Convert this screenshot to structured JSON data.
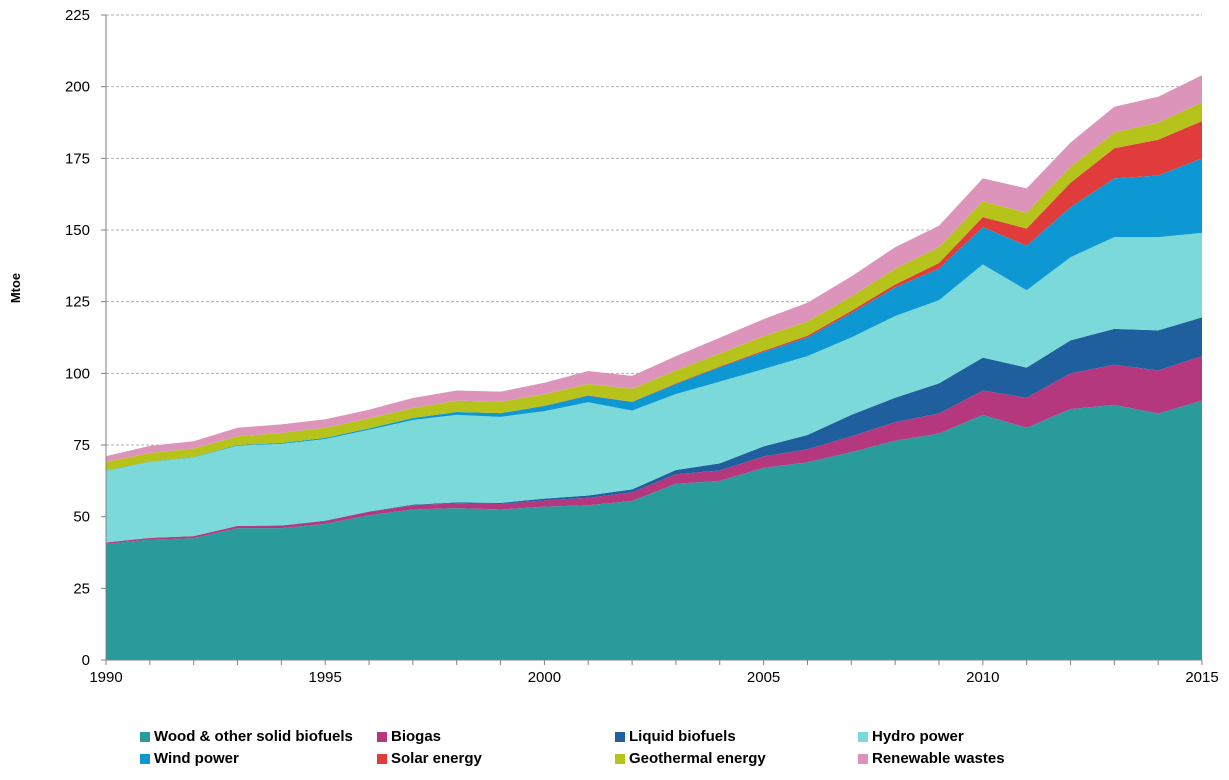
{
  "chart_data": {
    "type": "area",
    "stacked": true,
    "title": "",
    "xlabel": "",
    "ylabel": "Mtoe",
    "ylim": [
      0,
      225
    ],
    "yticks": [
      0,
      25,
      50,
      75,
      100,
      125,
      150,
      175,
      200,
      225
    ],
    "xlim": [
      1990,
      2015
    ],
    "xticks": [
      1990,
      1995,
      2000,
      2005,
      2010,
      2015
    ],
    "grid": "horizontal dashed",
    "legend_position": "bottom",
    "x": [
      1990,
      1991,
      1992,
      1993,
      1994,
      1995,
      1996,
      1997,
      1998,
      1999,
      2000,
      2001,
      2002,
      2003,
      2004,
      2005,
      2006,
      2007,
      2008,
      2009,
      2010,
      2011,
      2012,
      2013,
      2014,
      2015
    ],
    "series": [
      {
        "name": "Wood & other solid biofuels",
        "color": "#2a9b9b",
        "values": [
          40.5,
          42,
          42.5,
          46,
          46,
          47.5,
          50.5,
          52.5,
          53,
          52.5,
          53.5,
          54,
          55.5,
          61.5,
          62.5,
          67,
          69,
          72.5,
          76.5,
          79,
          85.5,
          81,
          87.5,
          89,
          86,
          90.5
        ]
      },
      {
        "name": "Biogas",
        "color": "#b5387f",
        "values": [
          0.5,
          0.6,
          0.7,
          0.8,
          0.9,
          1,
          1.2,
          1.5,
          1.7,
          1.9,
          2.2,
          2.6,
          3,
          3.3,
          3.6,
          4,
          4.5,
          5.5,
          6.5,
          7,
          8.5,
          10.5,
          12.5,
          14,
          15,
          15.5
        ]
      },
      {
        "name": "Liquid biofuels",
        "color": "#1f5f9e",
        "values": [
          0,
          0,
          0,
          0,
          0,
          0.1,
          0.1,
          0.2,
          0.3,
          0.4,
          0.6,
          0.8,
          1,
          1.5,
          2.5,
          3.5,
          5,
          7.5,
          8.5,
          10.5,
          11.5,
          10.5,
          11.5,
          12.5,
          14,
          13.5
        ]
      },
      {
        "name": "Hydro power",
        "color": "#7bdad9",
        "values": [
          25,
          26.5,
          27.5,
          28,
          28.5,
          28.5,
          28.5,
          29.5,
          30.5,
          30,
          30.5,
          32.5,
          27.5,
          26.5,
          28.5,
          27,
          27.5,
          27,
          28.5,
          29,
          32.5,
          27,
          29,
          32,
          32.5,
          29.5
        ]
      },
      {
        "name": "Wind power",
        "color": "#0d98d3",
        "values": [
          0.1,
          0.1,
          0.1,
          0.2,
          0.3,
          0.4,
          0.5,
          0.7,
          1,
          1.3,
          1.8,
          2.3,
          3,
          3.5,
          5,
          6,
          6.5,
          8.5,
          10,
          11,
          13,
          15.5,
          17.5,
          20.5,
          21.5,
          26
        ]
      },
      {
        "name": "Solar energy",
        "color": "#e03c3c",
        "values": [
          0,
          0,
          0,
          0,
          0,
          0,
          0,
          0,
          0,
          0,
          0.1,
          0.1,
          0.1,
          0.2,
          0.3,
          0.4,
          0.6,
          0.8,
          1,
          2,
          3.5,
          6,
          8.5,
          10.5,
          12.5,
          13
        ]
      },
      {
        "name": "Geothermal energy",
        "color": "#b6c31a",
        "values": [
          3,
          3,
          3,
          3,
          3.5,
          3.5,
          3.5,
          3.5,
          4,
          4,
          4,
          4,
          4.5,
          4.5,
          4.5,
          5,
          5,
          5,
          5.5,
          5.5,
          5.5,
          5.5,
          5.5,
          5.5,
          6,
          6.5
        ]
      },
      {
        "name": "Renewable wastes",
        "color": "#dc94bb",
        "values": [
          2,
          2.5,
          2.5,
          3,
          3,
          3,
          3,
          3.5,
          3.5,
          3.5,
          4,
          4.5,
          4.5,
          5,
          5.5,
          6,
          6.5,
          7,
          7.5,
          7.5,
          8,
          8.5,
          8.5,
          9,
          9,
          9.5
        ]
      }
    ]
  }
}
